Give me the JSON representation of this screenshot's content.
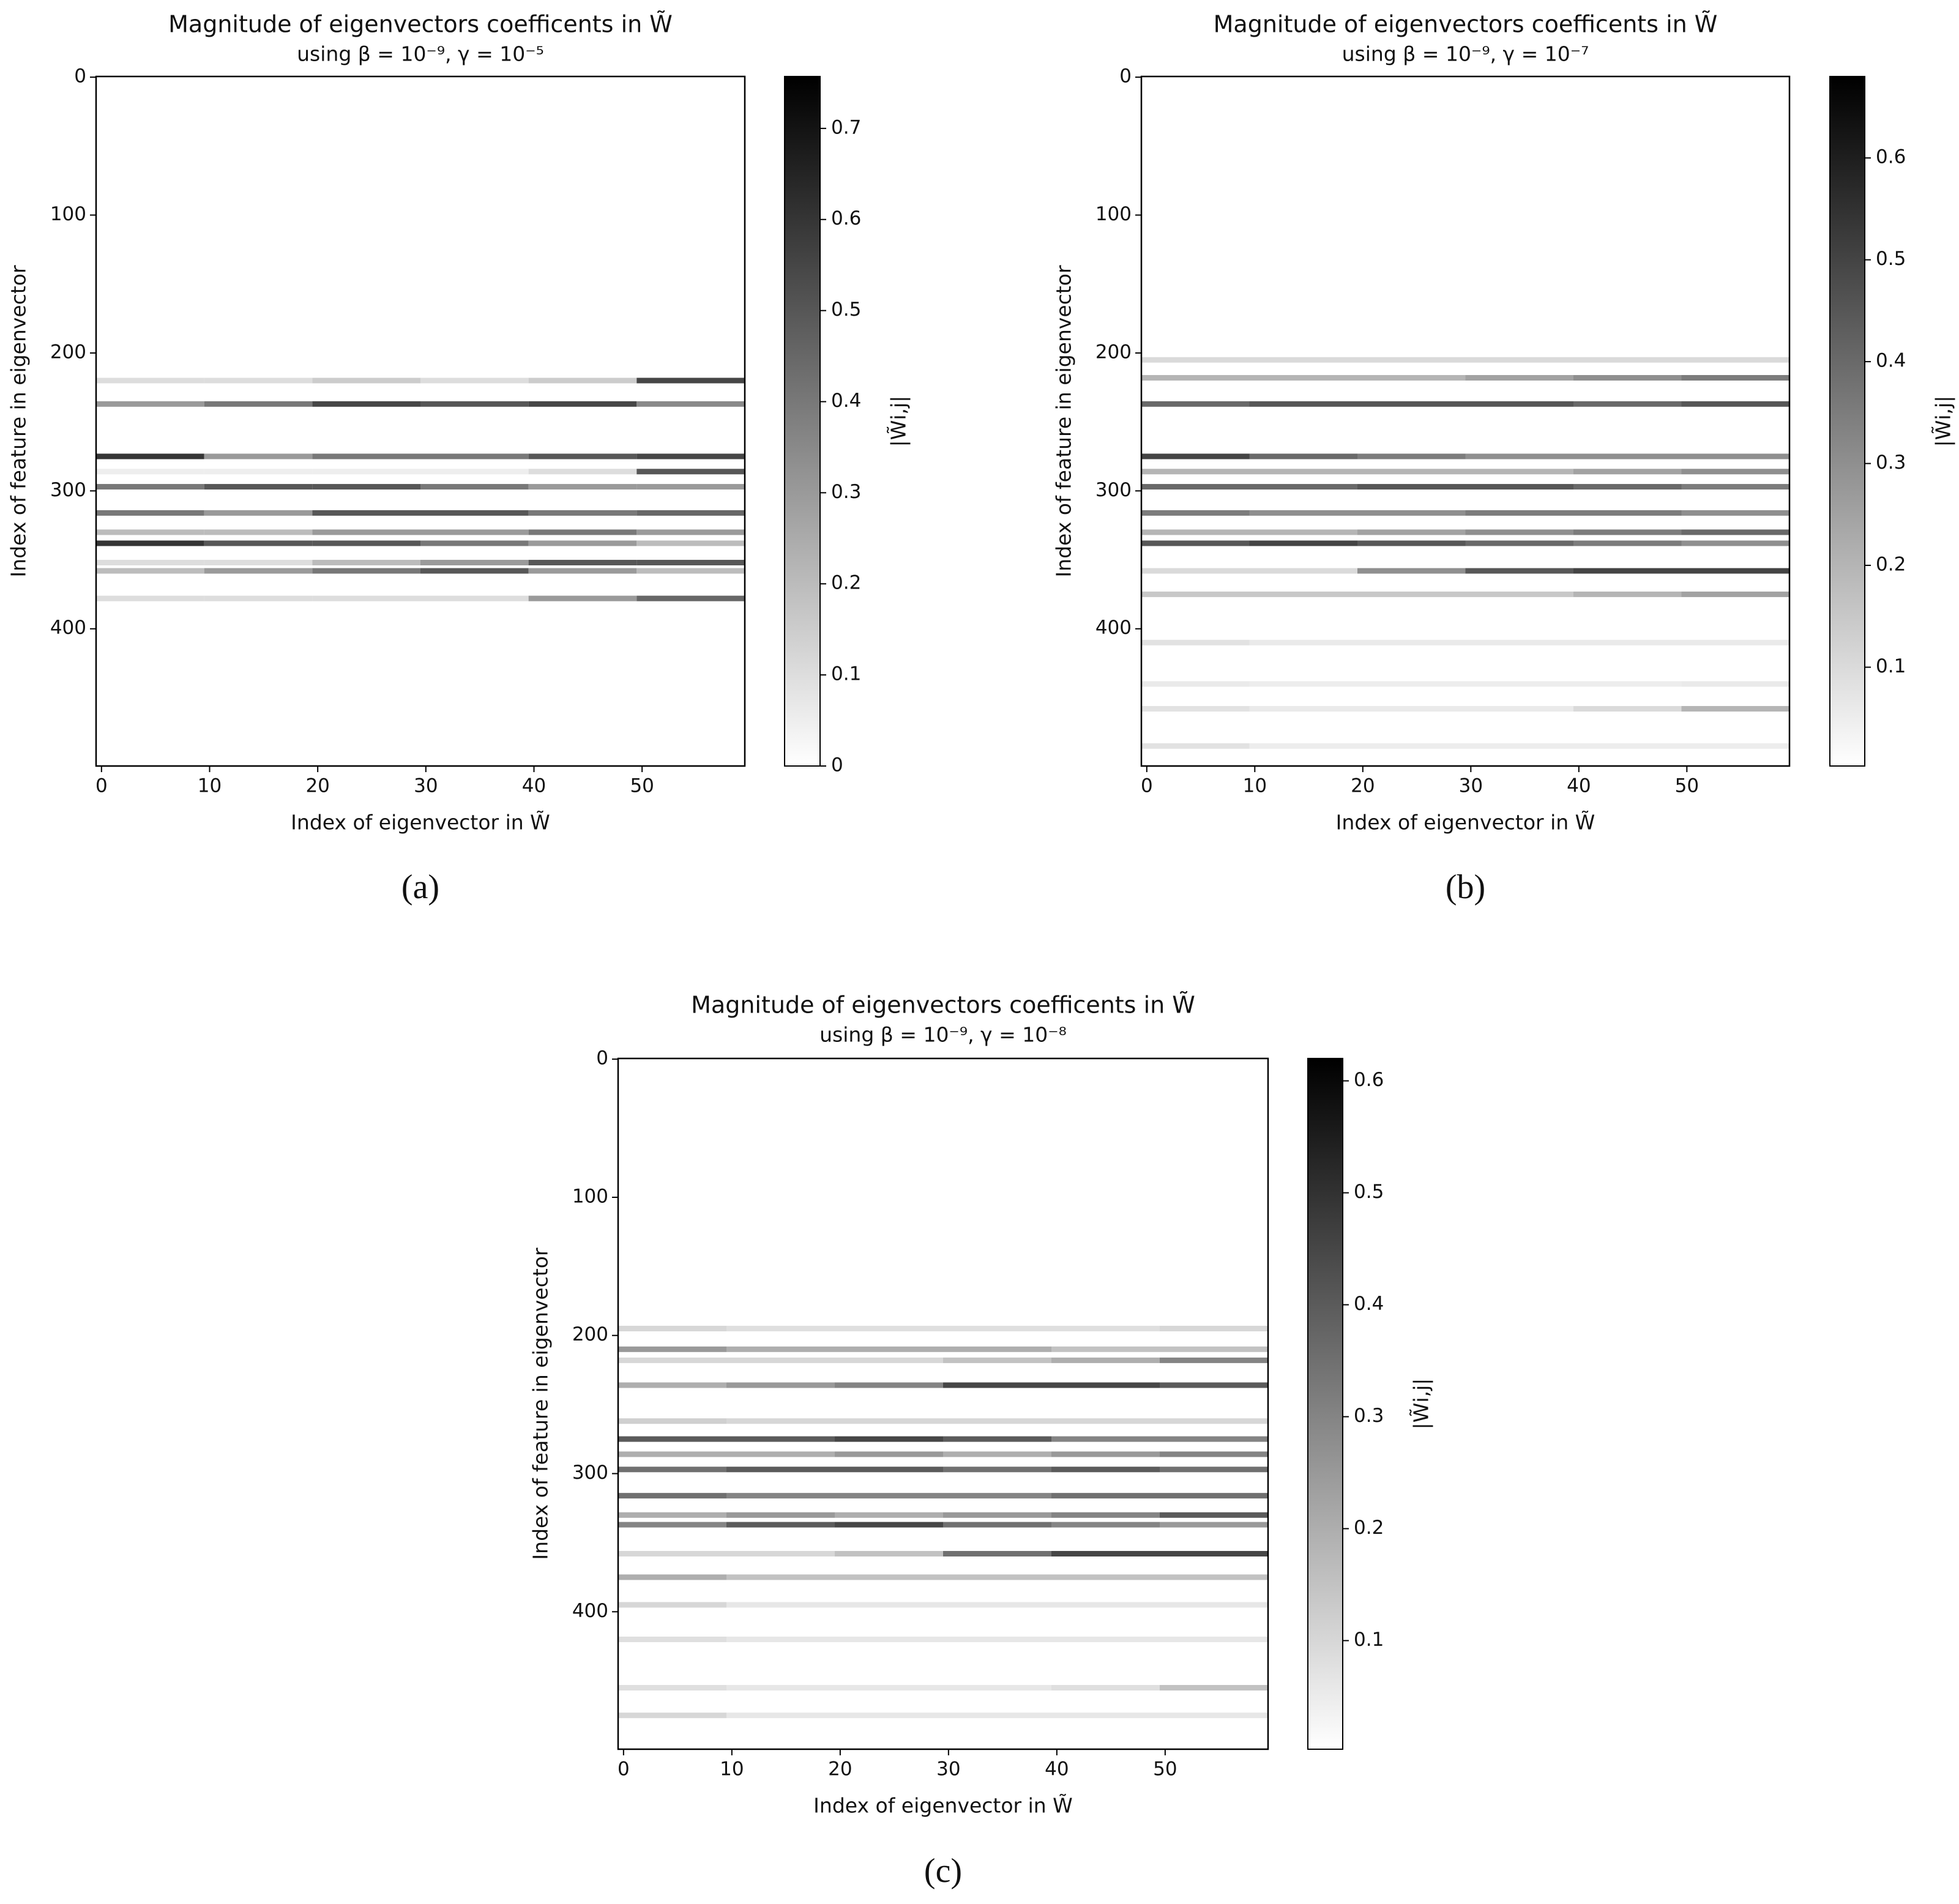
{
  "chart_data": [
    {
      "type": "heatmap",
      "caption": "(a)",
      "title": "Magnitude of eigenvectors coefficents in W̃",
      "subtitle": "using β = 10⁻⁹, γ = 10⁻⁵",
      "x_label": "Index of eigenvector in W̃",
      "y_label": "Index of feature in eigenvector",
      "colorbar_label": "|W̃i,j|",
      "xlim": [
        -0.5,
        59.5
      ],
      "xticks": [
        0,
        10,
        20,
        30,
        40,
        50
      ],
      "ylim": [
        499.5,
        -0.5
      ],
      "yticks": [
        0,
        100,
        200,
        300,
        400
      ],
      "clim": [
        0,
        0.757
      ],
      "cticks": [
        0.0,
        0.1,
        0.2,
        0.3,
        0.4,
        0.5,
        0.6,
        0.7
      ],
      "x": [
        0,
        10,
        20,
        30,
        40,
        50
      ],
      "y": [
        220,
        237,
        275,
        286,
        297,
        316,
        330,
        338,
        352,
        358,
        378
      ],
      "z": [
        [
          0.1,
          0.1,
          0.15,
          0.1,
          0.15,
          0.55
        ],
        [
          0.3,
          0.4,
          0.55,
          0.5,
          0.55,
          0.35
        ],
        [
          0.6,
          0.3,
          0.4,
          0.4,
          0.5,
          0.55
        ],
        [
          0.05,
          0.05,
          0.05,
          0.05,
          0.1,
          0.5
        ],
        [
          0.4,
          0.5,
          0.5,
          0.4,
          0.3,
          0.3
        ],
        [
          0.4,
          0.3,
          0.5,
          0.5,
          0.4,
          0.45
        ],
        [
          0.2,
          0.2,
          0.3,
          0.3,
          0.4,
          0.3
        ],
        [
          0.6,
          0.5,
          0.5,
          0.4,
          0.3,
          0.2
        ],
        [
          0.1,
          0.1,
          0.2,
          0.3,
          0.5,
          0.5
        ],
        [
          0.2,
          0.3,
          0.4,
          0.5,
          0.3,
          0.2
        ],
        [
          0.1,
          0.1,
          0.1,
          0.1,
          0.3,
          0.45
        ]
      ]
    },
    {
      "type": "heatmap",
      "caption": "(b)",
      "title": "Magnitude of eigenvectors coefficents in W̃",
      "subtitle": "using β = 10⁻⁹, γ = 10⁻⁷",
      "x_label": "Index of eigenvector in W̃",
      "y_label": "Index of feature in eigenvector",
      "colorbar_label": "|W̃i,j|",
      "xlim": [
        -0.5,
        59.5
      ],
      "xticks": [
        0,
        10,
        20,
        30,
        40,
        50
      ],
      "ylim": [
        499.5,
        -0.5
      ],
      "yticks": [
        0,
        100,
        200,
        300,
        400
      ],
      "clim": [
        0.003,
        0.68
      ],
      "cticks": [
        0.1,
        0.2,
        0.3,
        0.4,
        0.5,
        0.6
      ],
      "x": [
        0,
        10,
        20,
        30,
        40,
        50
      ],
      "y": [
        205,
        218,
        237,
        275,
        286,
        297,
        316,
        330,
        338,
        358,
        375,
        410,
        440,
        458,
        485
      ],
      "z": [
        [
          0.1,
          0.1,
          0.1,
          0.1,
          0.1,
          0.1
        ],
        [
          0.2,
          0.2,
          0.2,
          0.25,
          0.3,
          0.35
        ],
        [
          0.4,
          0.45,
          0.45,
          0.45,
          0.4,
          0.45
        ],
        [
          0.5,
          0.4,
          0.35,
          0.3,
          0.3,
          0.3
        ],
        [
          0.2,
          0.2,
          0.2,
          0.2,
          0.25,
          0.3
        ],
        [
          0.4,
          0.4,
          0.45,
          0.45,
          0.4,
          0.35
        ],
        [
          0.35,
          0.3,
          0.3,
          0.35,
          0.35,
          0.3
        ],
        [
          0.2,
          0.2,
          0.25,
          0.3,
          0.35,
          0.4
        ],
        [
          0.45,
          0.5,
          0.45,
          0.4,
          0.35,
          0.3
        ],
        [
          0.1,
          0.1,
          0.3,
          0.45,
          0.5,
          0.5
        ],
        [
          0.15,
          0.15,
          0.15,
          0.15,
          0.2,
          0.25
        ],
        [
          0.08,
          0.06,
          0.06,
          0.06,
          0.06,
          0.06
        ],
        [
          0.06,
          0.05,
          0.05,
          0.05,
          0.05,
          0.06
        ],
        [
          0.08,
          0.06,
          0.06,
          0.06,
          0.1,
          0.2
        ],
        [
          0.08,
          0.05,
          0.05,
          0.05,
          0.05,
          0.05
        ]
      ]
    },
    {
      "type": "heatmap",
      "caption": "(c)",
      "title": "Magnitude of eigenvectors coefficents in W̃",
      "subtitle": "using β = 10⁻⁹, γ = 10⁻⁸",
      "x_label": "Index of eigenvector in W̃",
      "y_label": "Index of feature in eigenvector",
      "colorbar_label": "|W̃i,j|",
      "xlim": [
        -0.5,
        59.5
      ],
      "xticks": [
        0,
        10,
        20,
        30,
        40,
        50
      ],
      "ylim": [
        499.5,
        -0.5
      ],
      "yticks": [
        0,
        100,
        200,
        300,
        400
      ],
      "clim": [
        0.003,
        0.62
      ],
      "cticks": [
        0.1,
        0.2,
        0.3,
        0.4,
        0.5,
        0.6
      ],
      "x": [
        0,
        10,
        20,
        30,
        40,
        50
      ],
      "y": [
        195,
        210,
        218,
        236,
        262,
        275,
        286,
        297,
        316,
        330,
        337,
        358,
        375,
        395,
        420,
        455,
        475
      ],
      "z": [
        [
          0.1,
          0.08,
          0.08,
          0.08,
          0.08,
          0.1
        ],
        [
          0.25,
          0.2,
          0.2,
          0.2,
          0.15,
          0.15
        ],
        [
          0.1,
          0.1,
          0.1,
          0.15,
          0.2,
          0.3
        ],
        [
          0.2,
          0.25,
          0.3,
          0.45,
          0.45,
          0.4
        ],
        [
          0.12,
          0.1,
          0.1,
          0.1,
          0.1,
          0.1
        ],
        [
          0.4,
          0.4,
          0.45,
          0.4,
          0.3,
          0.3
        ],
        [
          0.2,
          0.2,
          0.25,
          0.2,
          0.25,
          0.3
        ],
        [
          0.35,
          0.4,
          0.4,
          0.35,
          0.4,
          0.35
        ],
        [
          0.35,
          0.3,
          0.3,
          0.3,
          0.35,
          0.35
        ],
        [
          0.2,
          0.25,
          0.2,
          0.25,
          0.3,
          0.4
        ],
        [
          0.3,
          0.4,
          0.45,
          0.35,
          0.3,
          0.25
        ],
        [
          0.1,
          0.1,
          0.15,
          0.35,
          0.45,
          0.45
        ],
        [
          0.2,
          0.15,
          0.15,
          0.15,
          0.15,
          0.15
        ],
        [
          0.1,
          0.06,
          0.06,
          0.06,
          0.06,
          0.06
        ],
        [
          0.08,
          0.06,
          0.06,
          0.06,
          0.06,
          0.06
        ],
        [
          0.08,
          0.06,
          0.06,
          0.06,
          0.08,
          0.15
        ],
        [
          0.1,
          0.06,
          0.06,
          0.06,
          0.06,
          0.06
        ]
      ]
    }
  ]
}
